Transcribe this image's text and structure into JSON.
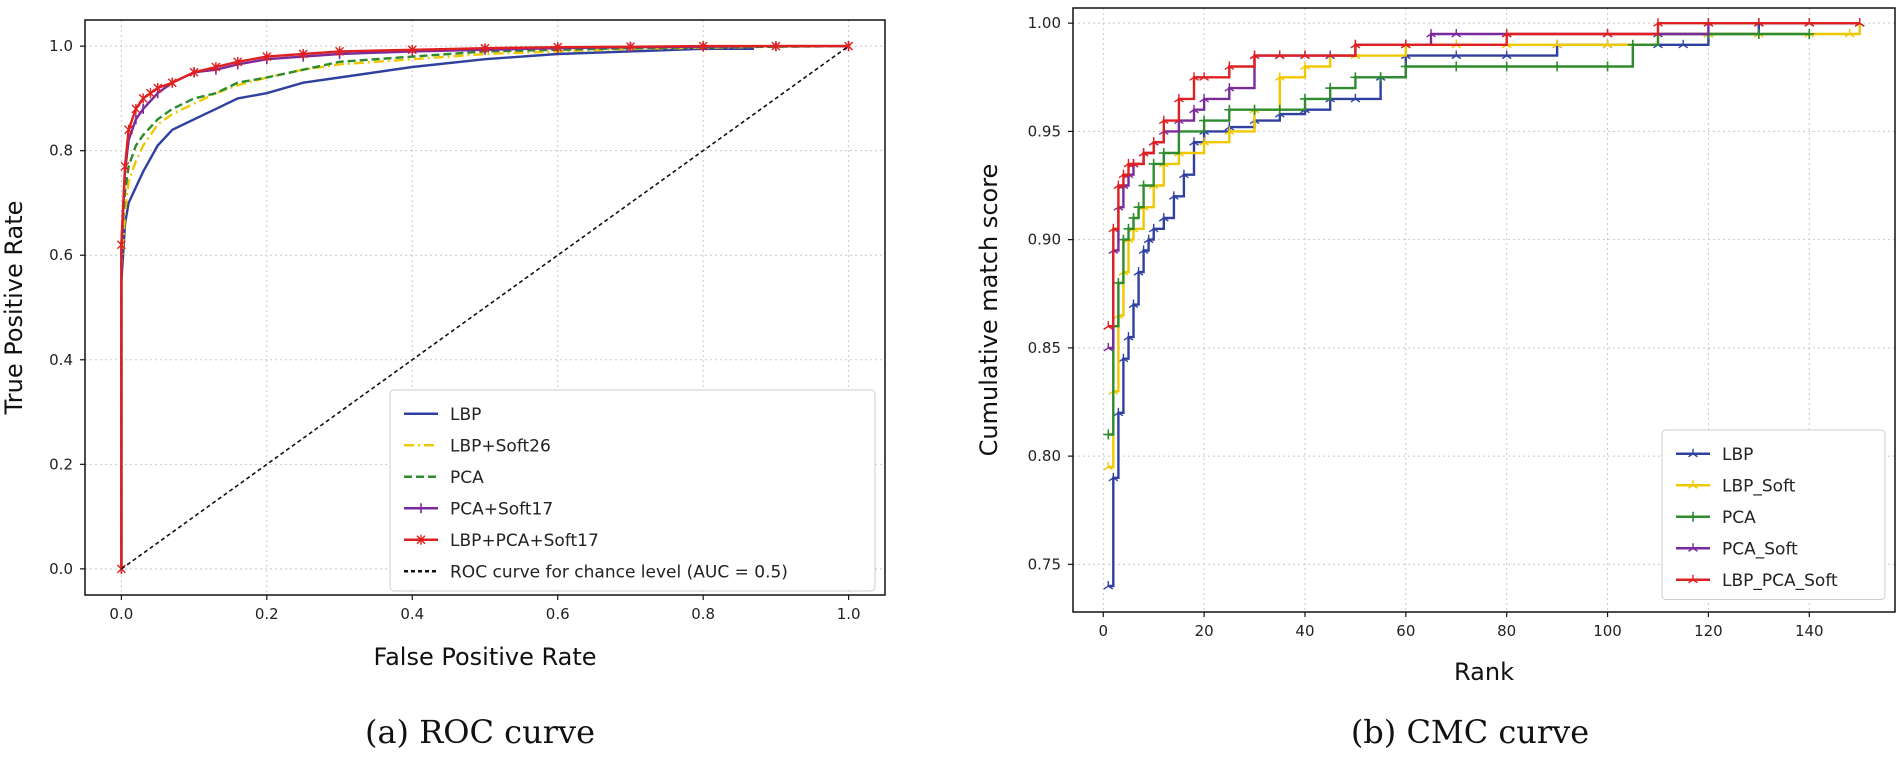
{
  "chart_data": [
    {
      "type": "line",
      "caption": "(a) ROC curve",
      "xlabel": "False Positive Rate",
      "ylabel": "True Positive Rate",
      "xlim": [
        -0.05,
        1.05
      ],
      "ylim": [
        -0.05,
        1.05
      ],
      "xticks": [
        0.0,
        0.2,
        0.4,
        0.6,
        0.8,
        1.0
      ],
      "yticks": [
        0.0,
        0.2,
        0.4,
        0.6,
        0.8,
        1.0
      ],
      "tick_format": 1,
      "grid": true,
      "legend": "lower-right",
      "series": [
        {
          "name": "LBP",
          "color": "#3040a0",
          "dash": "",
          "marker": "none",
          "x": [
            0,
            0,
            0.005,
            0.01,
            0.02,
            0.03,
            0.05,
            0.07,
            0.1,
            0.13,
            0.16,
            0.2,
            0.25,
            0.3,
            0.4,
            0.5,
            0.6,
            0.7,
            0.8,
            0.87
          ],
          "y": [
            0,
            0.55,
            0.66,
            0.7,
            0.73,
            0.76,
            0.81,
            0.84,
            0.86,
            0.88,
            0.9,
            0.91,
            0.93,
            0.94,
            0.96,
            0.975,
            0.985,
            0.99,
            0.995,
            0.995
          ]
        },
        {
          "name": "LBP+Soft26",
          "color": "#f0c800",
          "dash": "10 4 2 4",
          "marker": "none",
          "x": [
            0,
            0,
            0.005,
            0.01,
            0.02,
            0.03,
            0.05,
            0.07,
            0.1,
            0.13,
            0.16,
            0.2,
            0.25,
            0.3,
            0.4,
            0.5,
            0.6,
            0.7,
            0.8,
            0.9,
            1.0
          ],
          "y": [
            0,
            0.58,
            0.68,
            0.74,
            0.78,
            0.81,
            0.85,
            0.87,
            0.89,
            0.91,
            0.925,
            0.94,
            0.955,
            0.965,
            0.975,
            0.985,
            0.99,
            0.995,
            0.997,
            0.999,
            1.0
          ]
        },
        {
          "name": "PCA",
          "color": "#2e8b2e",
          "dash": "8 4",
          "marker": "none",
          "x": [
            0,
            0,
            0.005,
            0.01,
            0.02,
            0.03,
            0.05,
            0.07,
            0.1,
            0.13,
            0.16,
            0.2,
            0.25,
            0.3,
            0.4,
            0.5,
            0.6,
            0.7,
            0.8,
            0.9,
            1.0
          ],
          "y": [
            0,
            0.62,
            0.72,
            0.77,
            0.81,
            0.83,
            0.86,
            0.88,
            0.9,
            0.91,
            0.93,
            0.94,
            0.955,
            0.97,
            0.98,
            0.99,
            0.993,
            0.996,
            0.998,
            0.999,
            1.0
          ]
        },
        {
          "name": "PCA+Soft17",
          "color": "#7a2a9a",
          "dash": "",
          "marker": "tick",
          "x": [
            0,
            0,
            0.005,
            0.01,
            0.02,
            0.03,
            0.05,
            0.07,
            0.1,
            0.13,
            0.16,
            0.2,
            0.25,
            0.3,
            0.4,
            0.5,
            0.6,
            0.7,
            0.8,
            0.9,
            1.0
          ],
          "y": [
            0,
            0.62,
            0.76,
            0.82,
            0.86,
            0.88,
            0.91,
            0.93,
            0.95,
            0.955,
            0.965,
            0.975,
            0.98,
            0.985,
            0.99,
            0.993,
            0.996,
            0.998,
            0.999,
            1.0,
            1.0
          ]
        },
        {
          "name": "LBP+PCA+Soft17",
          "color": "#e02020",
          "dash": "",
          "marker": "star",
          "x": [
            0,
            0,
            0.005,
            0.01,
            0.02,
            0.03,
            0.04,
            0.05,
            0.07,
            0.1,
            0.13,
            0.16,
            0.2,
            0.25,
            0.3,
            0.4,
            0.5,
            0.6,
            0.7,
            0.8,
            0.9,
            1.0
          ],
          "y": [
            0,
            0.62,
            0.77,
            0.84,
            0.88,
            0.9,
            0.91,
            0.92,
            0.93,
            0.95,
            0.96,
            0.97,
            0.98,
            0.985,
            0.99,
            0.993,
            0.996,
            0.998,
            0.999,
            1.0,
            1.0,
            1.0
          ]
        },
        {
          "name": "ROC curve for chance level (AUC = 0.5)",
          "color": "#111111",
          "dash": "4 3",
          "marker": "none",
          "x": [
            0,
            1
          ],
          "y": [
            0,
            1
          ]
        }
      ]
    },
    {
      "type": "line",
      "caption": "(b) CMC curve",
      "xlabel": "Rank",
      "ylabel": "Cumulative match score",
      "xlim": [
        -6,
        157
      ],
      "ylim": [
        0.728,
        1.007
      ],
      "xticks": [
        0,
        20,
        40,
        60,
        80,
        100,
        120,
        140
      ],
      "yticks": [
        0.75,
        0.8,
        0.85,
        0.9,
        0.95,
        1.0
      ],
      "tick_format": 2,
      "grid": true,
      "legend": "lower-right",
      "series": [
        {
          "name": "LBP",
          "color": "#3040a0",
          "marker": "tri",
          "x": [
            1,
            2,
            3,
            4,
            5,
            6,
            7,
            8,
            9,
            10,
            12,
            14,
            16,
            18,
            20,
            25,
            30,
            35,
            40,
            45,
            50,
            55,
            60,
            70,
            80,
            90,
            100,
            110,
            115,
            120,
            130,
            140,
            150
          ],
          "y": [
            0.74,
            0.79,
            0.82,
            0.845,
            0.855,
            0.87,
            0.885,
            0.895,
            0.9,
            0.905,
            0.91,
            0.92,
            0.93,
            0.945,
            0.95,
            0.952,
            0.955,
            0.958,
            0.96,
            0.965,
            0.965,
            0.975,
            0.985,
            0.985,
            0.985,
            0.99,
            0.99,
            0.99,
            0.99,
            0.995,
            1.0,
            1.0,
            1.0
          ]
        },
        {
          "name": "LBP_Soft",
          "color": "#f0c800",
          "marker": "tri",
          "x": [
            1,
            2,
            3,
            4,
            5,
            6,
            8,
            10,
            12,
            15,
            20,
            25,
            30,
            35,
            40,
            45,
            50,
            60,
            70,
            80,
            90,
            100,
            110,
            120,
            130,
            140,
            148,
            150
          ],
          "y": [
            0.795,
            0.83,
            0.865,
            0.885,
            0.9,
            0.905,
            0.915,
            0.925,
            0.935,
            0.94,
            0.945,
            0.95,
            0.96,
            0.975,
            0.98,
            0.985,
            0.985,
            0.99,
            0.99,
            0.99,
            0.99,
            0.99,
            0.995,
            0.995,
            0.995,
            0.995,
            0.995,
            1.0
          ]
        },
        {
          "name": "PCA",
          "color": "#2e8b2e",
          "marker": "plus",
          "x": [
            1,
            2,
            3,
            4,
            5,
            6,
            7,
            8,
            10,
            12,
            15,
            20,
            25,
            30,
            35,
            40,
            45,
            50,
            55,
            60,
            70,
            80,
            90,
            100,
            105,
            110,
            120,
            130,
            140
          ],
          "y": [
            0.81,
            0.86,
            0.88,
            0.9,
            0.905,
            0.91,
            0.915,
            0.925,
            0.935,
            0.94,
            0.95,
            0.955,
            0.96,
            0.96,
            0.96,
            0.965,
            0.97,
            0.975,
            0.975,
            0.98,
            0.98,
            0.98,
            0.98,
            0.98,
            0.99,
            0.995,
            0.995,
            0.995,
            0.995
          ]
        },
        {
          "name": "PCA_Soft",
          "color": "#7a2a9a",
          "marker": "tri",
          "x": [
            1,
            2,
            3,
            4,
            5,
            6,
            8,
            10,
            12,
            15,
            18,
            20,
            25,
            30,
            35,
            40,
            45,
            50,
            60,
            65,
            70,
            80,
            100,
            110,
            120,
            130,
            140,
            150
          ],
          "y": [
            0.85,
            0.895,
            0.915,
            0.925,
            0.93,
            0.935,
            0.94,
            0.945,
            0.95,
            0.955,
            0.96,
            0.965,
            0.97,
            0.985,
            0.985,
            0.985,
            0.985,
            0.99,
            0.99,
            0.995,
            0.995,
            0.995,
            0.995,
            0.995,
            1.0,
            1.0,
            1.0,
            1.0
          ]
        },
        {
          "name": "LBP_PCA_Soft",
          "color": "#e02020",
          "marker": "tri",
          "x": [
            1,
            2,
            3,
            4,
            5,
            6,
            8,
            10,
            12,
            15,
            18,
            20,
            25,
            30,
            35,
            40,
            50,
            60,
            80,
            100,
            110,
            120,
            130,
            140,
            150
          ],
          "y": [
            0.86,
            0.905,
            0.925,
            0.93,
            0.935,
            0.935,
            0.94,
            0.945,
            0.955,
            0.965,
            0.975,
            0.975,
            0.98,
            0.985,
            0.985,
            0.985,
            0.99,
            0.99,
            0.995,
            0.995,
            1.0,
            1.0,
            1.0,
            1.0,
            1.0
          ]
        }
      ]
    }
  ]
}
